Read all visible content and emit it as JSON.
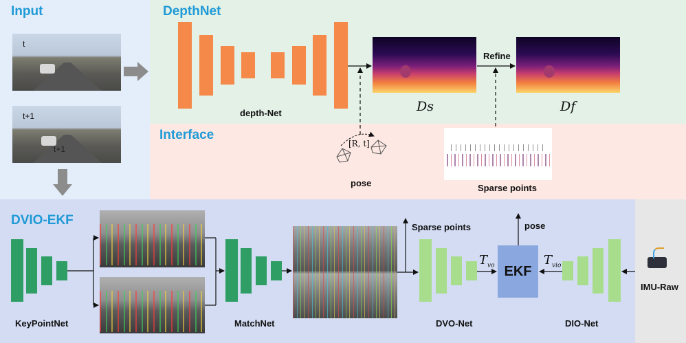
{
  "panels": {
    "input": {
      "title": "Input",
      "color": "#e4eefa"
    },
    "depthnet": {
      "title": "DepthNet",
      "color": "#e3f1e7"
    },
    "interface": {
      "title": "Interface",
      "color": "#fde8e3"
    },
    "dvio": {
      "title": "DVIO-EKF",
      "color": "#d3dcf3"
    },
    "imu": {
      "color": "#e7e7e7"
    }
  },
  "input_frames": {
    "frame_t_label": "t",
    "frame_t1_label": "t+1",
    "frame_t1_overlay": "t+1"
  },
  "depthnet": {
    "network_label": "depth-Net",
    "refine_label": "Refine",
    "ds_label": "Ds",
    "df_label": "Df",
    "block_color": "#f4894a"
  },
  "interface": {
    "pose_label": "pose",
    "pose_transform": "[R, t]",
    "sparse_points_label": "Sparse points"
  },
  "dvio": {
    "keypointnet_label": "KeyPointNet",
    "matchnet_label": "MatchNet",
    "dvonet_label": "DVO-Net",
    "dionet_label": "DIO-Net",
    "ekf_label": "EKF",
    "sparse_points_out": "Sparse points",
    "pose_out": "pose",
    "t_vo": {
      "main": "T",
      "sub": "vo"
    },
    "t_vio": {
      "main": "T",
      "sub": "vio"
    },
    "imu_label": "IMU-Raw",
    "dark_green": "#2e9e64",
    "light_green": "#a9dd8e",
    "ekf_color": "#8aa7df"
  }
}
